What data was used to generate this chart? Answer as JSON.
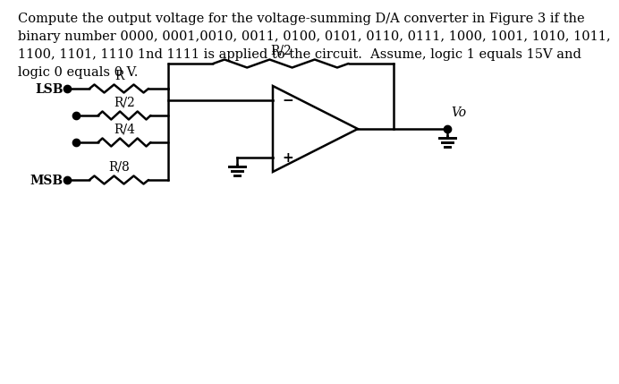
{
  "title_text": "Compute the output voltage for the voltage-summing D/A converter in Figure 3 if the\nbinary number 0000, 0001,0010, 0011, 0100, 0101, 0110, 0111, 1000, 1001, 1010, 1011,\n1100, 1101, 1110 1nd 1111 is applied to the circuit.  Assume, logic 1 equals 15V and\nlogic 0 equals 0 V.",
  "background_color": "#ffffff",
  "line_color": "#000000",
  "font_size_text": 10.5,
  "font_size_label": 10,
  "output_label": "Vo"
}
